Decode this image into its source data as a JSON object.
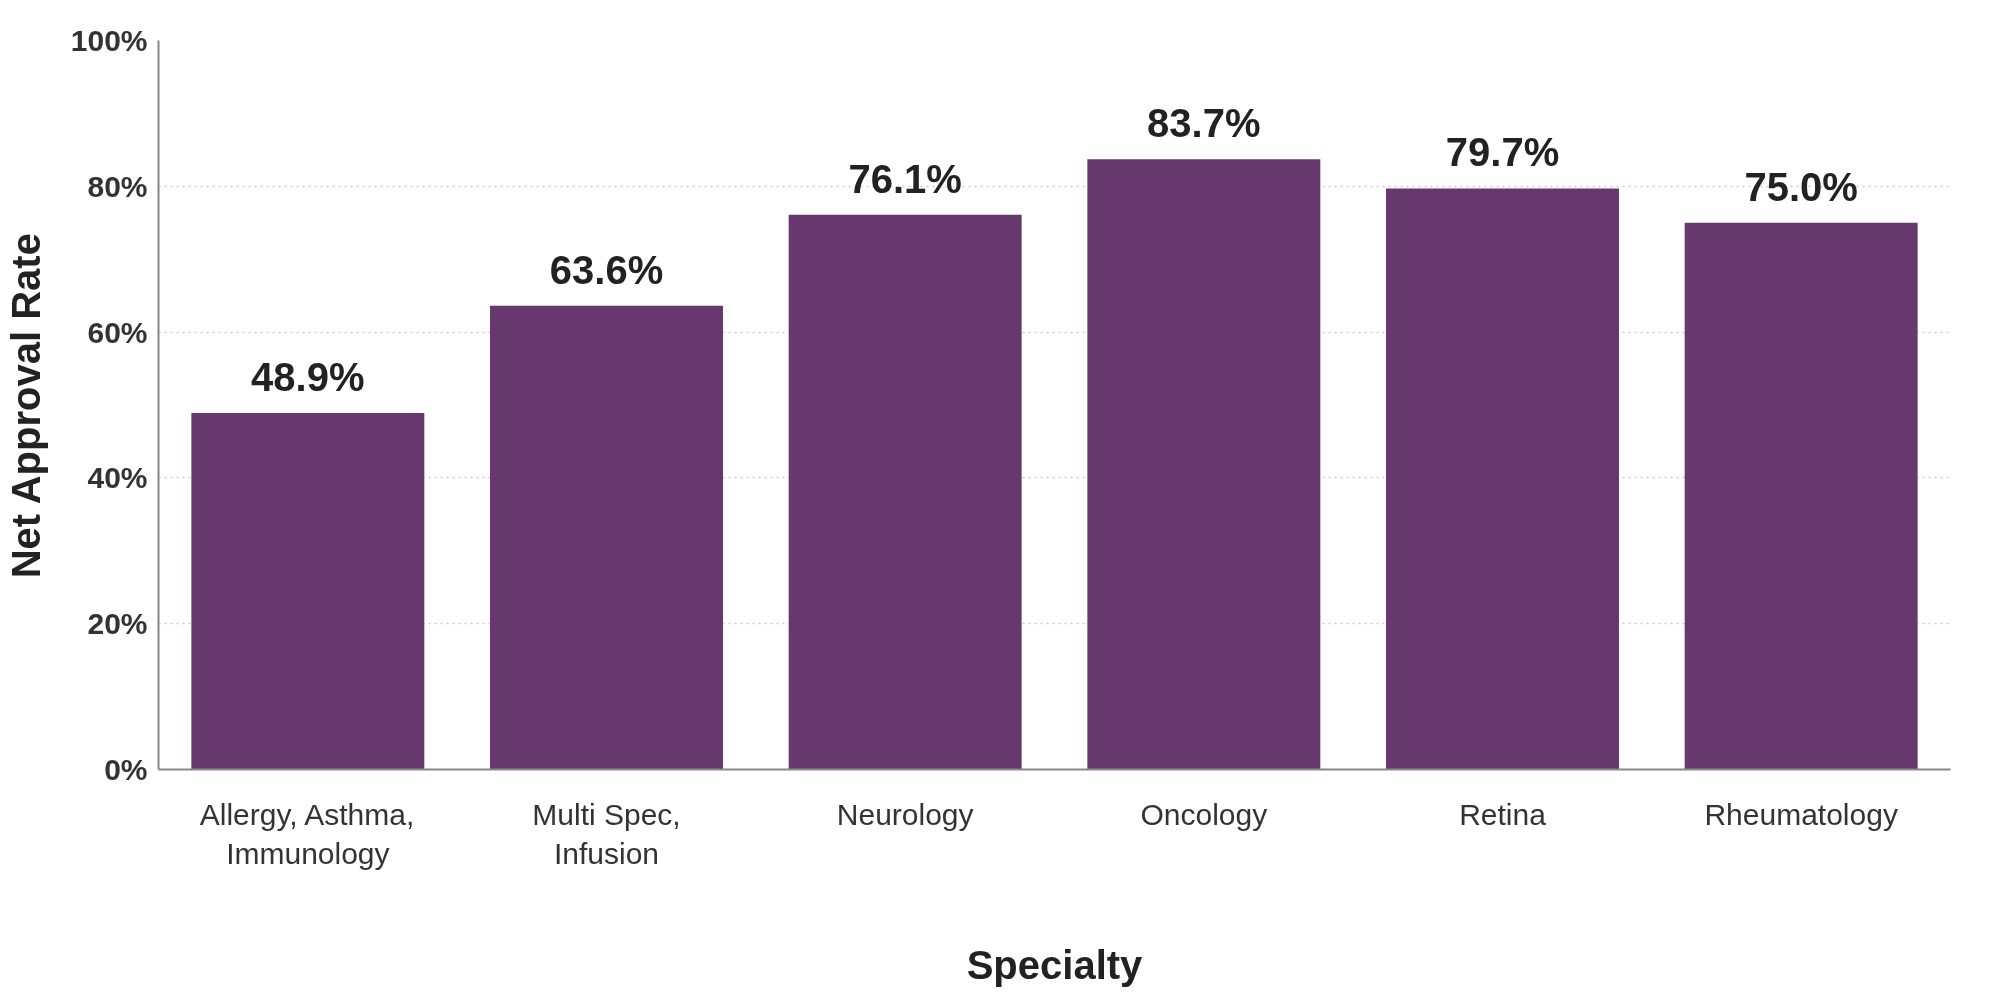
{
  "chart_data": {
    "type": "bar",
    "xlabel": "Specialty",
    "ylabel": "Net Approval Rate",
    "categories": [
      "Allergy, Asthma, Immunology",
      "Multi Spec, Infusion",
      "Neurology",
      "Oncology",
      "Retina",
      "Rheumatology"
    ],
    "values": [
      48.9,
      63.6,
      76.1,
      83.7,
      79.7,
      75.0
    ],
    "value_labels": [
      "48.9%",
      "63.6%",
      "76.1%",
      "83.7%",
      "79.7%",
      "75.0%"
    ],
    "color": "#66386e",
    "ylim": [
      0,
      100
    ],
    "yticks": [
      {
        "value": 0,
        "label": "0%"
      },
      {
        "value": 20,
        "label": "20%"
      },
      {
        "value": 40,
        "label": "40%"
      },
      {
        "value": 60,
        "label": "60%"
      },
      {
        "value": 80,
        "label": "80%"
      },
      {
        "value": 100,
        "label": "100%"
      }
    ],
    "grid": "y"
  }
}
